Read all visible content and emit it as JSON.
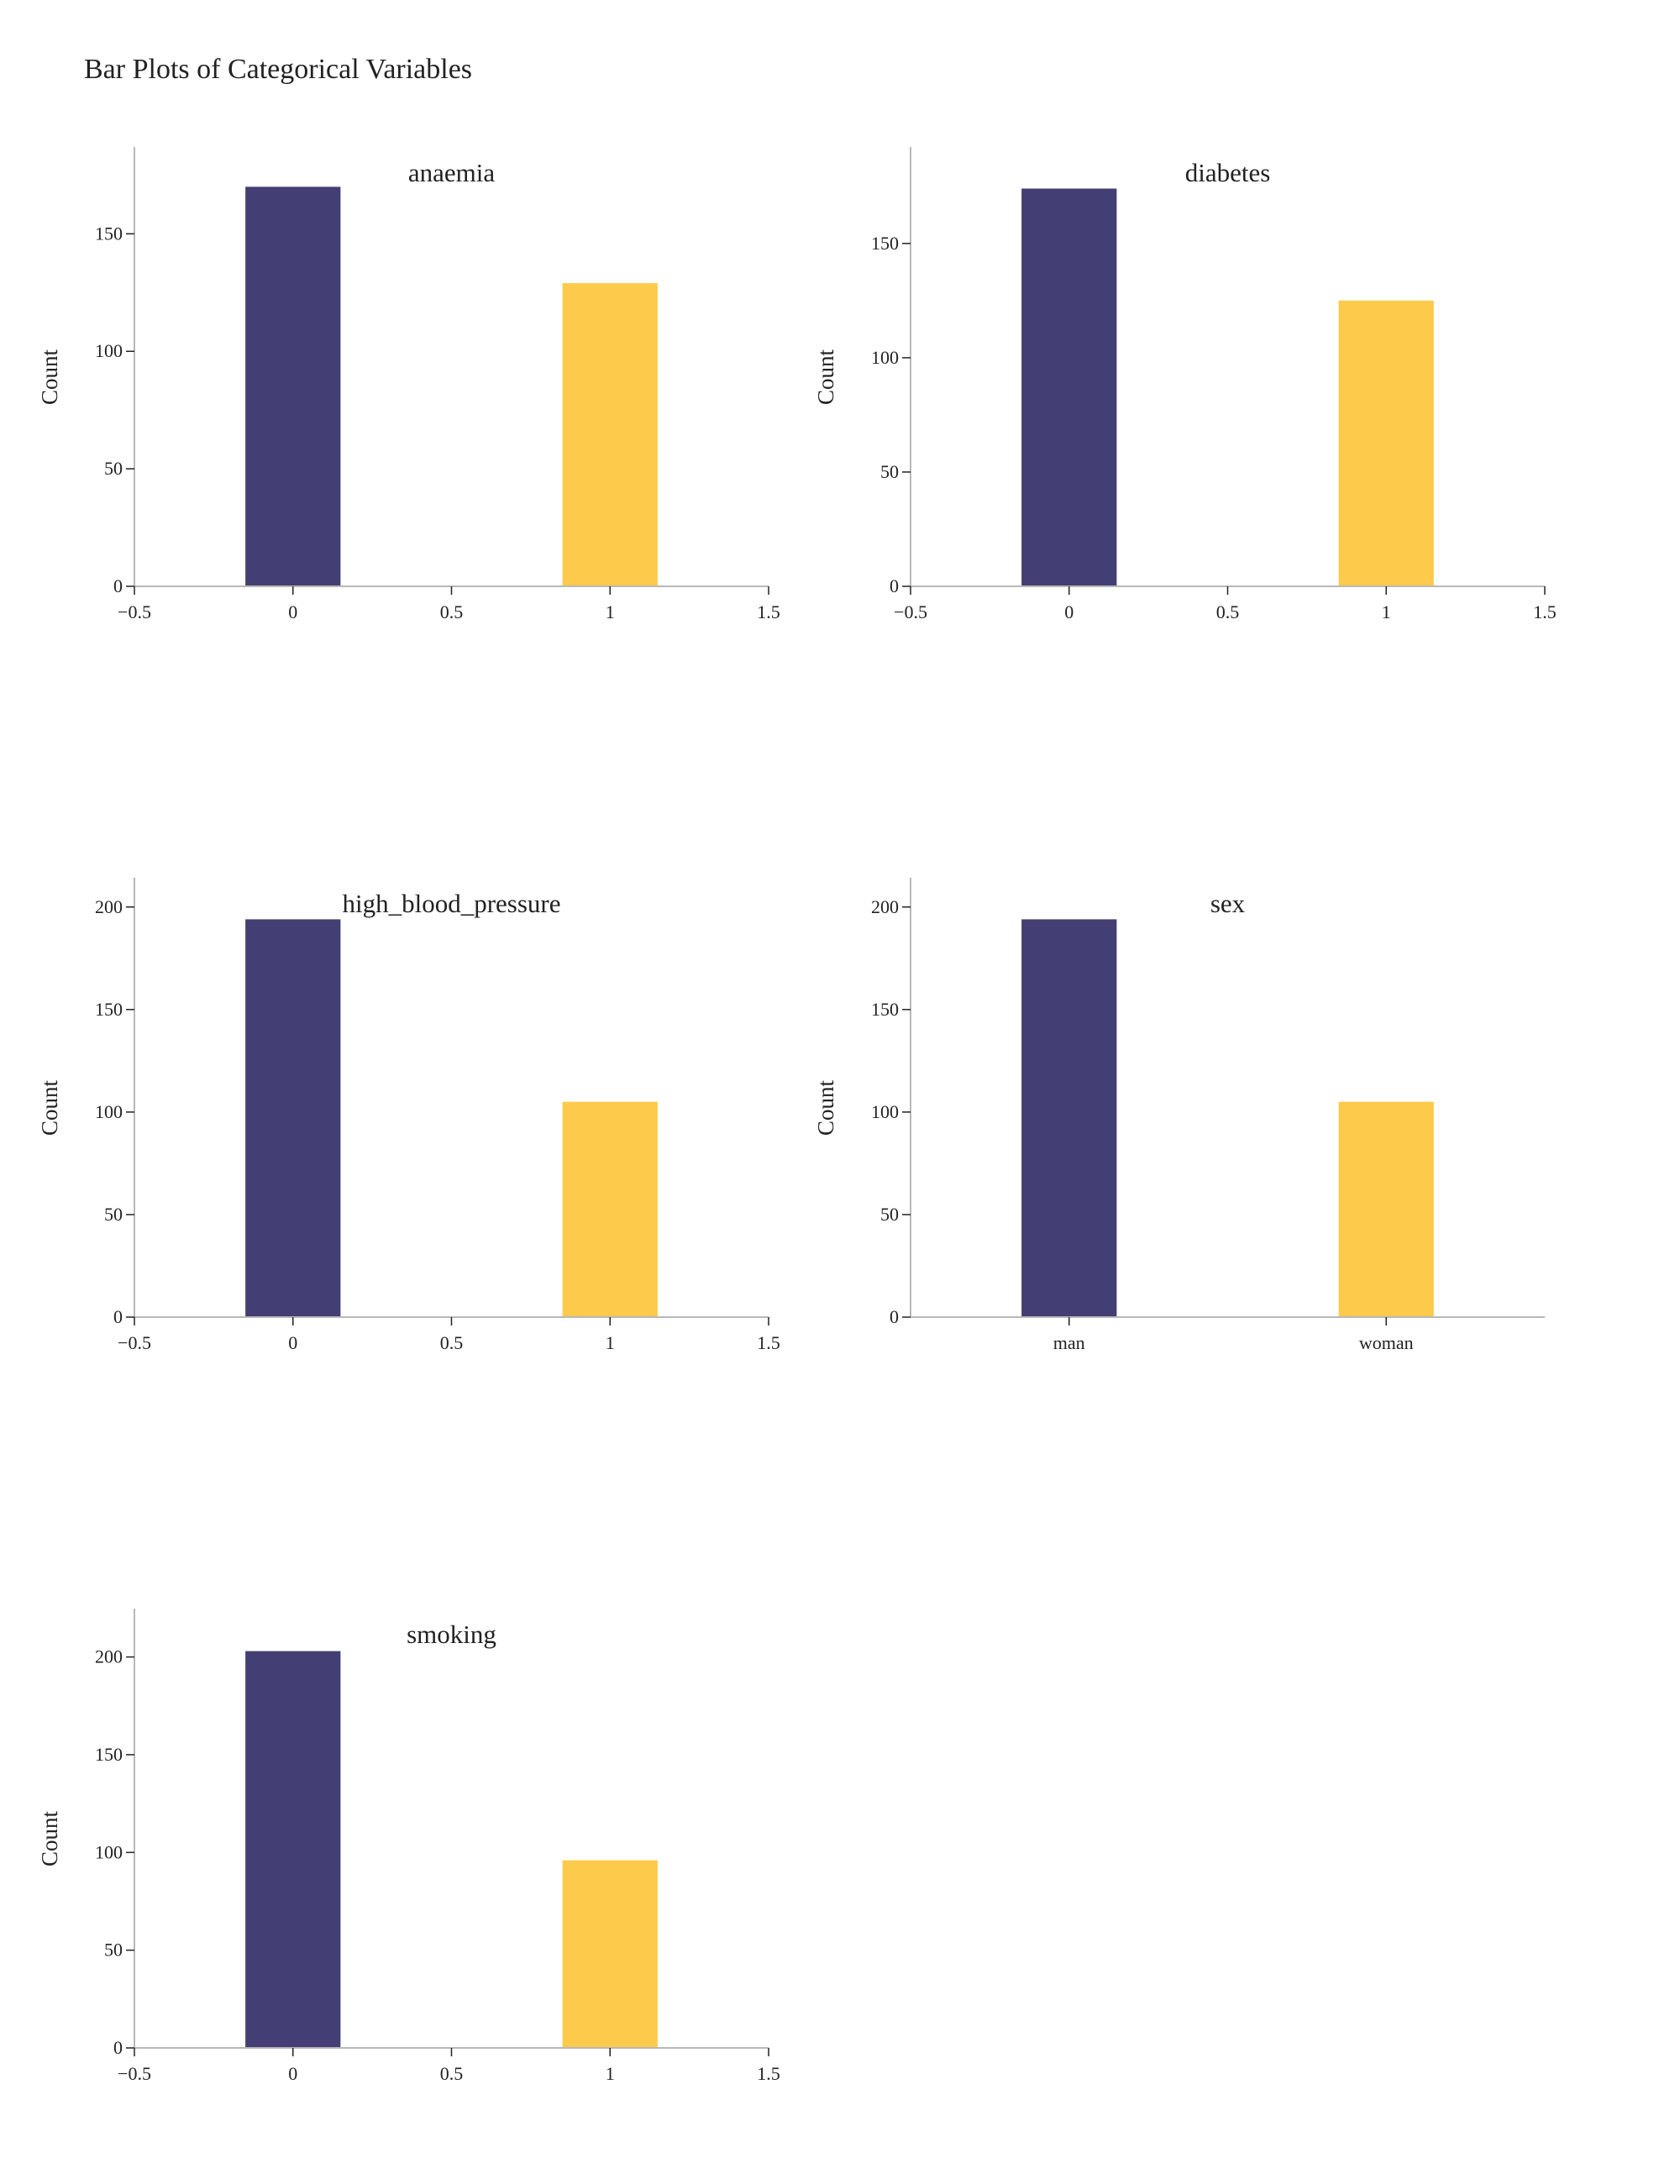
{
  "title": "Bar Plots of Categorical Variables",
  "colors": {
    "bar_0": "#433E73",
    "bar_1": "#FECA4B",
    "axis": "#B8B8B8",
    "text": "#222222"
  },
  "chart_data": [
    {
      "type": "bar",
      "title": "anaemia",
      "ylabel": "Count",
      "xlabel": "",
      "x_axis": "numeric",
      "xlim": [
        -0.5,
        1.5
      ],
      "x_ticks": [
        -0.5,
        0,
        0.5,
        1,
        1.5
      ],
      "x_tick_labels": [
        "−0.5",
        "0",
        "0.5",
        "1",
        "1.5"
      ],
      "ylim": [
        0,
        178
      ],
      "y_ticks": [
        0,
        50,
        100,
        150
      ],
      "bars": [
        {
          "x": 0,
          "value": 170
        },
        {
          "x": 1,
          "value": 129
        }
      ],
      "bar_width": 0.3
    },
    {
      "type": "bar",
      "title": "diabetes",
      "ylabel": "Count",
      "xlabel": "",
      "x_axis": "numeric",
      "xlim": [
        -0.5,
        1.5
      ],
      "x_ticks": [
        -0.5,
        0,
        0.5,
        1,
        1.5
      ],
      "x_tick_labels": [
        "−0.5",
        "0",
        "0.5",
        "1",
        "1.5"
      ],
      "ylim": [
        0,
        183
      ],
      "y_ticks": [
        0,
        50,
        100,
        150
      ],
      "bars": [
        {
          "x": 0,
          "value": 174
        },
        {
          "x": 1,
          "value": 125
        }
      ],
      "bar_width": 0.3
    },
    {
      "type": "bar",
      "title": "high_blood_pressure",
      "ylabel": "Count",
      "xlabel": "",
      "x_axis": "numeric",
      "xlim": [
        -0.5,
        1.5
      ],
      "x_ticks": [
        -0.5,
        0,
        0.5,
        1,
        1.5
      ],
      "x_tick_labels": [
        "−0.5",
        "0",
        "0.5",
        "1",
        "1.5"
      ],
      "ylim": [
        0,
        204
      ],
      "y_ticks": [
        0,
        50,
        100,
        150,
        200
      ],
      "bars": [
        {
          "x": 0,
          "value": 194
        },
        {
          "x": 1,
          "value": 105
        }
      ],
      "bar_width": 0.3
    },
    {
      "type": "bar",
      "title": "sex",
      "ylabel": "Count",
      "xlabel": "",
      "x_axis": "categorical",
      "categories": [
        "man",
        "woman"
      ],
      "ylim": [
        0,
        204
      ],
      "y_ticks": [
        0,
        50,
        100,
        150,
        200
      ],
      "bars": [
        {
          "category": "man",
          "value": 194
        },
        {
          "category": "woman",
          "value": 105
        }
      ],
      "bar_width": 0.3
    },
    {
      "type": "bar",
      "title": "smoking",
      "ylabel": "Count",
      "xlabel": "",
      "x_axis": "numeric",
      "xlim": [
        -0.5,
        1.5
      ],
      "x_ticks": [
        -0.5,
        0,
        0.5,
        1,
        1.5
      ],
      "x_tick_labels": [
        "−0.5",
        "0",
        "0.5",
        "1",
        "1.5"
      ],
      "ylim": [
        0,
        214
      ],
      "y_ticks": [
        0,
        50,
        100,
        150,
        200
      ],
      "bars": [
        {
          "x": 0,
          "value": 203
        },
        {
          "x": 1,
          "value": 96
        }
      ],
      "bar_width": 0.3
    }
  ]
}
